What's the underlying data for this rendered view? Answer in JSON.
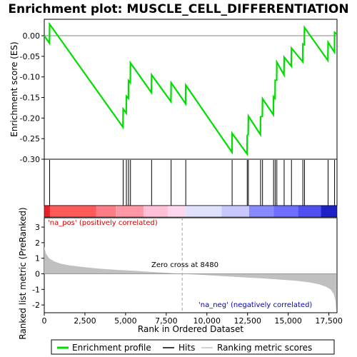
{
  "chart_data": {
    "type": "line",
    "title": "Enrichment plot: MUSCLE_CELL_DIFFERENTIATION",
    "es_panel": {
      "ylabel": "Enrichment score (ES)",
      "ylim": [
        -0.3,
        0.04
      ],
      "yticks": [
        0.0,
        -0.05,
        -0.1,
        -0.15,
        -0.2,
        -0.25,
        -0.3
      ],
      "ytick_labels": [
        "0.00",
        "-0.05",
        "-0.10",
        "-0.15",
        "-0.20",
        "-0.25",
        "-0.30"
      ],
      "profile_color": "#00dd00",
      "hits": [
        330,
        4850,
        5050,
        5180,
        5300,
        6600,
        7800,
        8700,
        11550,
        12480,
        12550,
        13300,
        13420,
        14100,
        14200,
        14300,
        14750,
        15200,
        15900,
        16000,
        17450,
        17850
      ],
      "profile": [
        [
          0,
          0.0
        ],
        [
          320,
          -0.018
        ],
        [
          330,
          0.028
        ],
        [
          4840,
          -0.222
        ],
        [
          4850,
          -0.178
        ],
        [
          5040,
          -0.188
        ],
        [
          5050,
          -0.147
        ],
        [
          5170,
          -0.152
        ],
        [
          5180,
          -0.109
        ],
        [
          5290,
          -0.114
        ],
        [
          5300,
          -0.066
        ],
        [
          6590,
          -0.138
        ],
        [
          6600,
          -0.095
        ],
        [
          7790,
          -0.16
        ],
        [
          7800,
          -0.114
        ],
        [
          8690,
          -0.165
        ],
        [
          8700,
          -0.12
        ],
        [
          11540,
          -0.283
        ],
        [
          11550,
          -0.237
        ],
        [
          12470,
          -0.287
        ],
        [
          12480,
          -0.242
        ],
        [
          12540,
          -0.24
        ],
        [
          12550,
          -0.195
        ],
        [
          13290,
          -0.24
        ],
        [
          13300,
          -0.197
        ],
        [
          13410,
          -0.196
        ],
        [
          13420,
          -0.153
        ],
        [
          14090,
          -0.192
        ],
        [
          14100,
          -0.148
        ],
        [
          14190,
          -0.152
        ],
        [
          14200,
          -0.108
        ],
        [
          14290,
          -0.108
        ],
        [
          14300,
          -0.064
        ],
        [
          14740,
          -0.095
        ],
        [
          14750,
          -0.052
        ],
        [
          15190,
          -0.074
        ],
        [
          15200,
          -0.03
        ],
        [
          15890,
          -0.063
        ],
        [
          15900,
          -0.02
        ],
        [
          15990,
          -0.022
        ],
        [
          16000,
          0.02
        ],
        [
          17440,
          -0.06
        ],
        [
          17450,
          -0.016
        ],
        [
          17840,
          -0.04
        ],
        [
          17850,
          0.008
        ],
        [
          18000,
          0.004
        ]
      ]
    },
    "metric_panel": {
      "ylabel": "Ranked list metric (PreRanked)",
      "ylim": [
        -2.5,
        3.6
      ],
      "yticks": [
        3,
        2,
        1,
        0,
        -1,
        -2
      ],
      "ytick_labels": [
        "3",
        "2",
        "1",
        "0",
        "-1",
        "-2"
      ],
      "fill_color": "#c0c0c0",
      "metric_curve": [
        [
          0,
          1.75
        ],
        [
          100,
          1.3
        ],
        [
          300,
          1.0
        ],
        [
          600,
          0.8
        ],
        [
          1000,
          0.65
        ],
        [
          1500,
          0.55
        ],
        [
          2500,
          0.42
        ],
        [
          3500,
          0.32
        ],
        [
          4500,
          0.25
        ],
        [
          5500,
          0.19
        ],
        [
          6500,
          0.13
        ],
        [
          7500,
          0.07
        ],
        [
          8480,
          0.0
        ],
        [
          9500,
          -0.06
        ],
        [
          10500,
          -0.12
        ],
        [
          11500,
          -0.18
        ],
        [
          12500,
          -0.24
        ],
        [
          13500,
          -0.3
        ],
        [
          14500,
          -0.37
        ],
        [
          15500,
          -0.45
        ],
        [
          16300,
          -0.55
        ],
        [
          16900,
          -0.68
        ],
        [
          17300,
          -0.82
        ],
        [
          17600,
          -1.0
        ],
        [
          17800,
          -1.3
        ],
        [
          17900,
          -1.7
        ],
        [
          17950,
          -2.4
        ]
      ]
    },
    "xlabel": "Rank in Dataset / Rank in Ordered Dataset",
    "xlabel_text": "Rank in Ordered Dataset",
    "xlim": [
      0,
      18000
    ],
    "xticks": [
      0,
      2500,
      5000,
      7500,
      10000,
      12500,
      15000,
      17500
    ],
    "xtick_labels": [
      "0",
      "2,500",
      "5,000",
      "7,500",
      "10,000",
      "12,500",
      "15,000",
      "17,500"
    ],
    "zero_cross": 8480,
    "annotations": {
      "pos_label": "'na_pos' (positively correlated)",
      "neg_label": "'na_neg' (negatively correlated)",
      "zero_cross_label": "Zero cross at 8480"
    },
    "legend": {
      "placement": "bottom",
      "items": [
        {
          "label": "Enrichment profile",
          "color": "#00dd00",
          "kind": "line"
        },
        {
          "label": "Hits",
          "color": "#000000",
          "kind": "line"
        },
        {
          "label": "Ranking metric scores",
          "color": "#c0c0c0",
          "kind": "line"
        }
      ]
    }
  }
}
